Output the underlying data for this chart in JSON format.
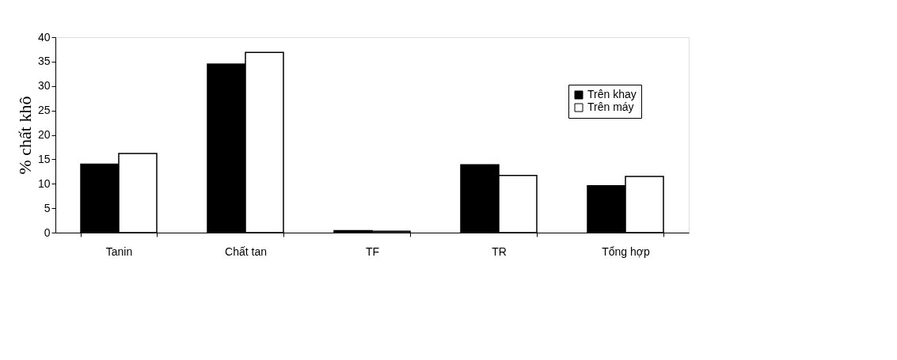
{
  "chart_data": {
    "type": "bar",
    "ylabel": "% chất khô",
    "categories": [
      "Tanin",
      "Chất tan",
      "TF",
      "TR",
      "Tổng hợp"
    ],
    "series": [
      {
        "name": "Trên khay",
        "color": "#000000",
        "values": [
          14.0,
          34.5,
          0.4,
          13.9,
          9.6
        ]
      },
      {
        "name": "Trên máy",
        "color": "#ffffff",
        "values": [
          16.2,
          36.9,
          0.3,
          11.7,
          11.5
        ]
      }
    ],
    "ylim": [
      0,
      40
    ],
    "yticks": [
      0,
      5,
      10,
      15,
      20,
      25,
      30,
      35,
      40
    ],
    "grid": false,
    "legend": "top right"
  }
}
